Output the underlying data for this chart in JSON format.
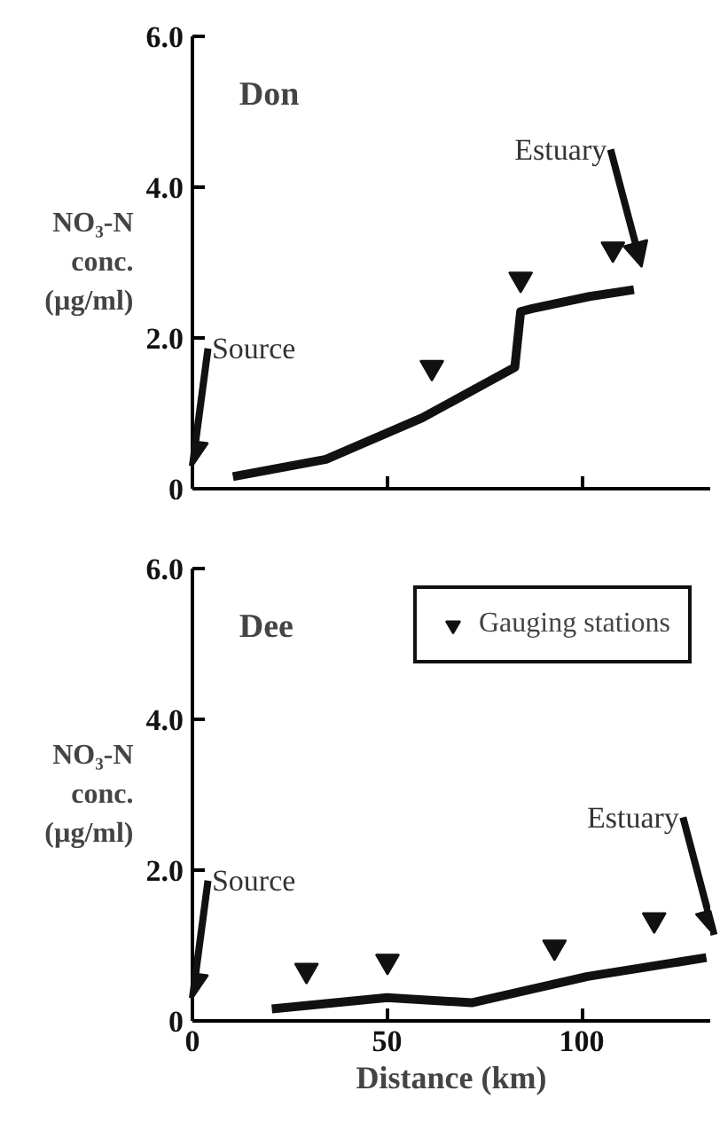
{
  "chart_data": [
    {
      "type": "line",
      "title": "Don",
      "ylabel": "NO₃-N conc. (µg/ml)",
      "xlim": [
        0,
        133
      ],
      "xticks": [
        {
          "value": 0,
          "label": null
        },
        {
          "value": 50,
          "label": null
        },
        {
          "value": 100,
          "label": null
        }
      ],
      "ylim": [
        0,
        6
      ],
      "yticks": [
        0,
        {
          "value": 2,
          "label": "2.0"
        },
        {
          "value": 4,
          "label": "4.0"
        },
        {
          "value": 6,
          "label": "6.0"
        }
      ],
      "tick_labels": "y",
      "grid": false,
      "legend": false,
      "annotations": [
        "Source",
        "Estuary"
      ],
      "series": [
        {
          "color": "#111111",
          "line_style": "solid",
          "x": [
            10.4,
            34.3,
            59,
            82.8,
            84.3,
            87.3,
            102,
            113.4
          ],
          "values": [
            0.16,
            0.39,
            0.94,
            1.61,
            2.35,
            2.39,
            2.55,
            2.64
          ]
        },
        {
          "type": "scatter",
          "marker": "triangle",
          "color": "#111111",
          "x": [
            61.5,
            84.3,
            108
          ],
          "values": [
            1.61,
            2.78,
            3.18
          ]
        }
      ]
    },
    {
      "type": "line",
      "title": "Dee",
      "xlabel": "Distance (km)",
      "ylabel": "NO₃-N conc. (µg/ml)",
      "xlim": [
        0,
        133
      ],
      "xticks": [
        0,
        50,
        100
      ],
      "ylim": [
        0,
        6
      ],
      "yticks": [
        0,
        {
          "value": 2,
          "label": "2.0"
        },
        {
          "value": 4,
          "label": "4.0"
        },
        {
          "value": 6,
          "label": "6.0"
        }
      ],
      "grid": false,
      "legend": "top right",
      "annotations": [
        "Source",
        "Estuary"
      ],
      "series": [
        {
          "color": "#111111",
          "line_style": "solid",
          "x": [
            20.4,
            50,
            71.7,
            101.5,
            132
          ],
          "values": [
            0.16,
            0.31,
            0.24,
            0.59,
            0.84
          ]
        },
        {
          "type": "scatter",
          "marker": "triangle",
          "color": "#111111",
          "name": "Gauging stations",
          "x": [
            29.3,
            50.1,
            93,
            118.6
          ],
          "values": [
            0.67,
            0.79,
            0.98,
            1.34
          ]
        }
      ]
    }
  ]
}
